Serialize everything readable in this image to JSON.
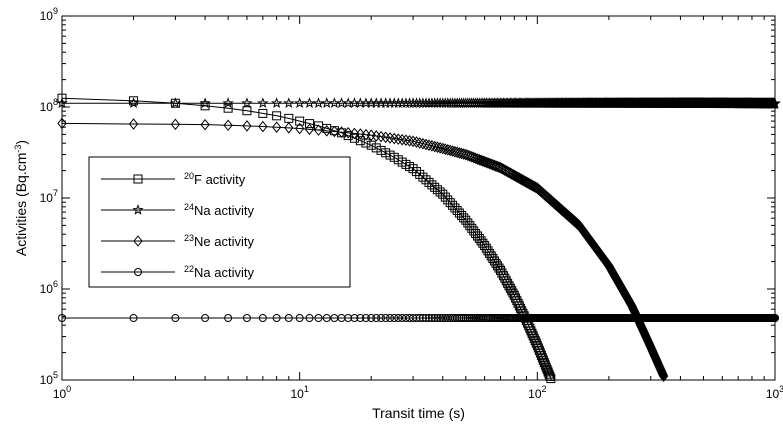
{
  "chart_data": {
    "type": "line",
    "xlabel": "Transit time (s)",
    "ylabel": {
      "base": "Activities (Bq.cm",
      "sup": "-3",
      "end": ")"
    },
    "xscale": "log",
    "yscale": "log",
    "xlim": [
      1,
      1000
    ],
    "ylim": [
      100000,
      1000000000
    ],
    "x_ticks": [
      {
        "value": 1,
        "base": "10",
        "exp": "0"
      },
      {
        "value": 10,
        "base": "10",
        "exp": "1"
      },
      {
        "value": 100,
        "base": "10",
        "exp": "2"
      },
      {
        "value": 1000,
        "base": "10",
        "exp": "3"
      }
    ],
    "y_ticks": [
      {
        "value": 100000,
        "base": "10",
        "exp": "5"
      },
      {
        "value": 1000000,
        "base": "10",
        "exp": "6"
      },
      {
        "value": 10000000,
        "base": "10",
        "exp": "7"
      },
      {
        "value": 100000000,
        "base": "10",
        "exp": "8"
      },
      {
        "value": 1000000000,
        "base": "10",
        "exp": "9"
      }
    ],
    "grid": false,
    "legend_position": "left",
    "series": [
      {
        "name": "20F activity",
        "label_sup": "20",
        "label_text": "F activity",
        "marker": "square",
        "x": [
          1,
          2,
          3,
          4,
          5,
          6,
          7,
          8,
          9,
          10,
          12,
          15,
          20,
          25,
          30,
          40,
          50,
          60,
          70,
          80,
          90,
          100,
          110,
          115
        ],
        "y": [
          125000000,
          117000000,
          110000000,
          103000000,
          97000000,
          91000000,
          85000000,
          80000000,
          75000000,
          70000000,
          62000000,
          52000000,
          38000000,
          28000000,
          21000000,
          11000000,
          5700000,
          3000000,
          1600000,
          850000,
          450000,
          240000,
          130000,
          98000
        ]
      },
      {
        "name": "24Na activity",
        "label_sup": "24",
        "label_text": "Na activity",
        "marker": "star",
        "x": [
          1,
          2,
          3,
          4,
          5,
          6,
          7,
          8,
          9,
          10,
          20,
          50,
          100,
          200,
          500,
          1000
        ],
        "y": [
          110000000,
          110000000,
          110000000,
          110000000,
          110000000,
          110000000,
          110000000,
          110000000,
          110000000,
          110000000,
          110000000,
          110000000,
          110000000,
          110000000,
          110000000,
          109000000
        ]
      },
      {
        "name": "23Ne activity",
        "label_sup": "23",
        "label_text": "Ne activity",
        "marker": "diamond",
        "x": [
          1,
          2,
          3,
          4,
          5,
          6,
          7,
          8,
          9,
          10,
          15,
          20,
          30,
          40,
          50,
          70,
          100,
          150,
          200,
          250,
          300,
          340
        ],
        "y": [
          66000000,
          65000000,
          64500000,
          64000000,
          63000000,
          62000000,
          61000000,
          60000000,
          59000000,
          58000000,
          53000000,
          49000000,
          42000000,
          35000000,
          30000000,
          21500000,
          12800000,
          5000000,
          1800000,
          650000,
          230000,
          110000
        ]
      },
      {
        "name": "22Na activity",
        "label_sup": "22",
        "label_text": "Na activity",
        "marker": "circle",
        "x": [
          1,
          2,
          3,
          4,
          5,
          6,
          7,
          8,
          9,
          10,
          20,
          50,
          100,
          200,
          500,
          1000
        ],
        "y": [
          480000,
          480000,
          480000,
          480000,
          480000,
          480000,
          480000,
          480000,
          480000,
          480000,
          480000,
          480000,
          480000,
          480000,
          480000,
          480000
        ]
      }
    ]
  }
}
